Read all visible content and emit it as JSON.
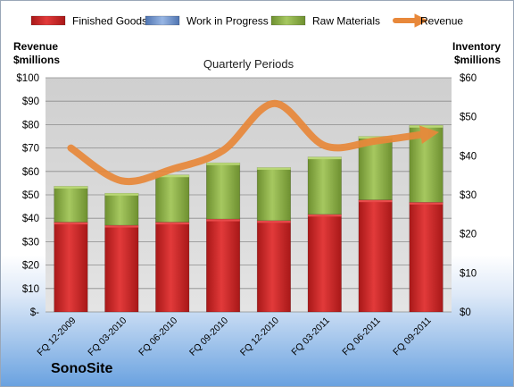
{
  "company": "SonoSite",
  "chart_data": {
    "type": "bar",
    "subtitle": "Quarterly Periods",
    "categories": [
      "FQ 12-2009",
      "FQ 03-2010",
      "FQ 06-2010",
      "FQ 09-2010",
      "FQ 12-2010",
      "FQ 03-2011",
      "FQ 06-2011",
      "FQ 09-2011"
    ],
    "left_axis": {
      "label_line1": "Revenue",
      "label_line2": "$millions",
      "min": 0,
      "max": 100,
      "step": 10,
      "tick_labels": [
        "$-",
        "$10",
        "$20",
        "$30",
        "$40",
        "$50",
        "$60",
        "$70",
        "$80",
        "$90",
        "$100"
      ]
    },
    "right_axis": {
      "label_line1": "Inventory",
      "label_line2": "$millions",
      "min": 0,
      "max": 60,
      "step": 10,
      "tick_labels": [
        "$0",
        "$10",
        "$20",
        "$30",
        "$40",
        "$50",
        "$60"
      ]
    },
    "series": [
      {
        "name": "Finished Goods",
        "axis": "right",
        "kind": "bar",
        "color": "#cc2222",
        "values": [
          23.0,
          22.2,
          23.0,
          23.8,
          23.4,
          25.0,
          28.7,
          28.1
        ]
      },
      {
        "name": "Work in Progress",
        "axis": "right",
        "kind": "bar",
        "color": "#6a8fc8",
        "values": [
          0,
          0,
          0,
          0,
          0,
          0,
          0,
          0
        ]
      },
      {
        "name": "Raw Materials",
        "axis": "right",
        "kind": "bar",
        "color": "#8db04a",
        "values": [
          9.2,
          8.2,
          12.1,
          14.4,
          13.6,
          14.7,
          16.3,
          19.7
        ]
      },
      {
        "name": "Revenue",
        "axis": "left",
        "kind": "line",
        "color": "#e8883a",
        "values": [
          70,
          56,
          61,
          69,
          89,
          71,
          73,
          76
        ]
      }
    ],
    "legend_position": "top",
    "grid": true
  }
}
